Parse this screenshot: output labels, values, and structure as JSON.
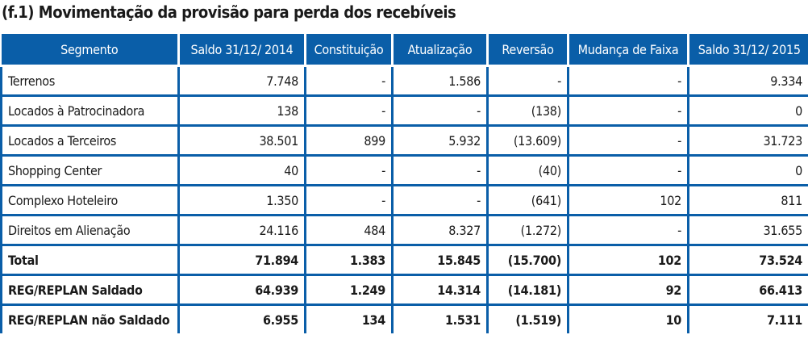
{
  "title": "(f.1) Movimentação da provisão para perda dos recebíveis",
  "headers": [
    "Segmento",
    "Saldo  31/12/ 2014",
    "Constituição",
    "Atualização",
    "Reversão",
    "Mudança de Faixa",
    "Saldo 31/12/ 2015"
  ],
  "rows": [
    {
      "bold": false,
      "cells": [
        "Terrenos",
        "7.748",
        "-",
        "1.586",
        "-",
        "-",
        "9.334"
      ]
    },
    {
      "bold": false,
      "cells": [
        "Locados à Patrocinadora",
        "138",
        "-",
        "-",
        "(138)",
        "-",
        "0"
      ]
    },
    {
      "bold": false,
      "cells": [
        "Locados a Terceiros",
        "38.501",
        "899",
        "5.932",
        "(13.609)",
        "-",
        "31.723"
      ]
    },
    {
      "bold": false,
      "cells": [
        "Shopping Center",
        "40",
        "-",
        "-",
        "(40)",
        "-",
        "0"
      ]
    },
    {
      "bold": false,
      "cells": [
        "Complexo Hoteleiro",
        "1.350",
        "-",
        "-",
        "(641)",
        "102",
        "811"
      ]
    },
    {
      "bold": false,
      "cells": [
        "Direitos em Alienação",
        "24.116",
        "484",
        "8.327",
        "(1.272)",
        "-",
        "31.655"
      ]
    },
    {
      "bold": true,
      "cells": [
        "Total",
        "71.894",
        "1.383",
        "15.845",
        "(15.700)",
        "102",
        "73.524"
      ]
    },
    {
      "bold": true,
      "cells": [
        "REG/REPLAN Saldado",
        "64.939",
        "1.249",
        "14.314",
        "(14.181)",
        "92",
        "66.413"
      ]
    },
    {
      "bold": true,
      "cells": [
        "REG/REPLAN não Saldado",
        "6.955",
        "134",
        "1.531",
        "(1.519)",
        "10",
        "7.111"
      ]
    }
  ]
}
